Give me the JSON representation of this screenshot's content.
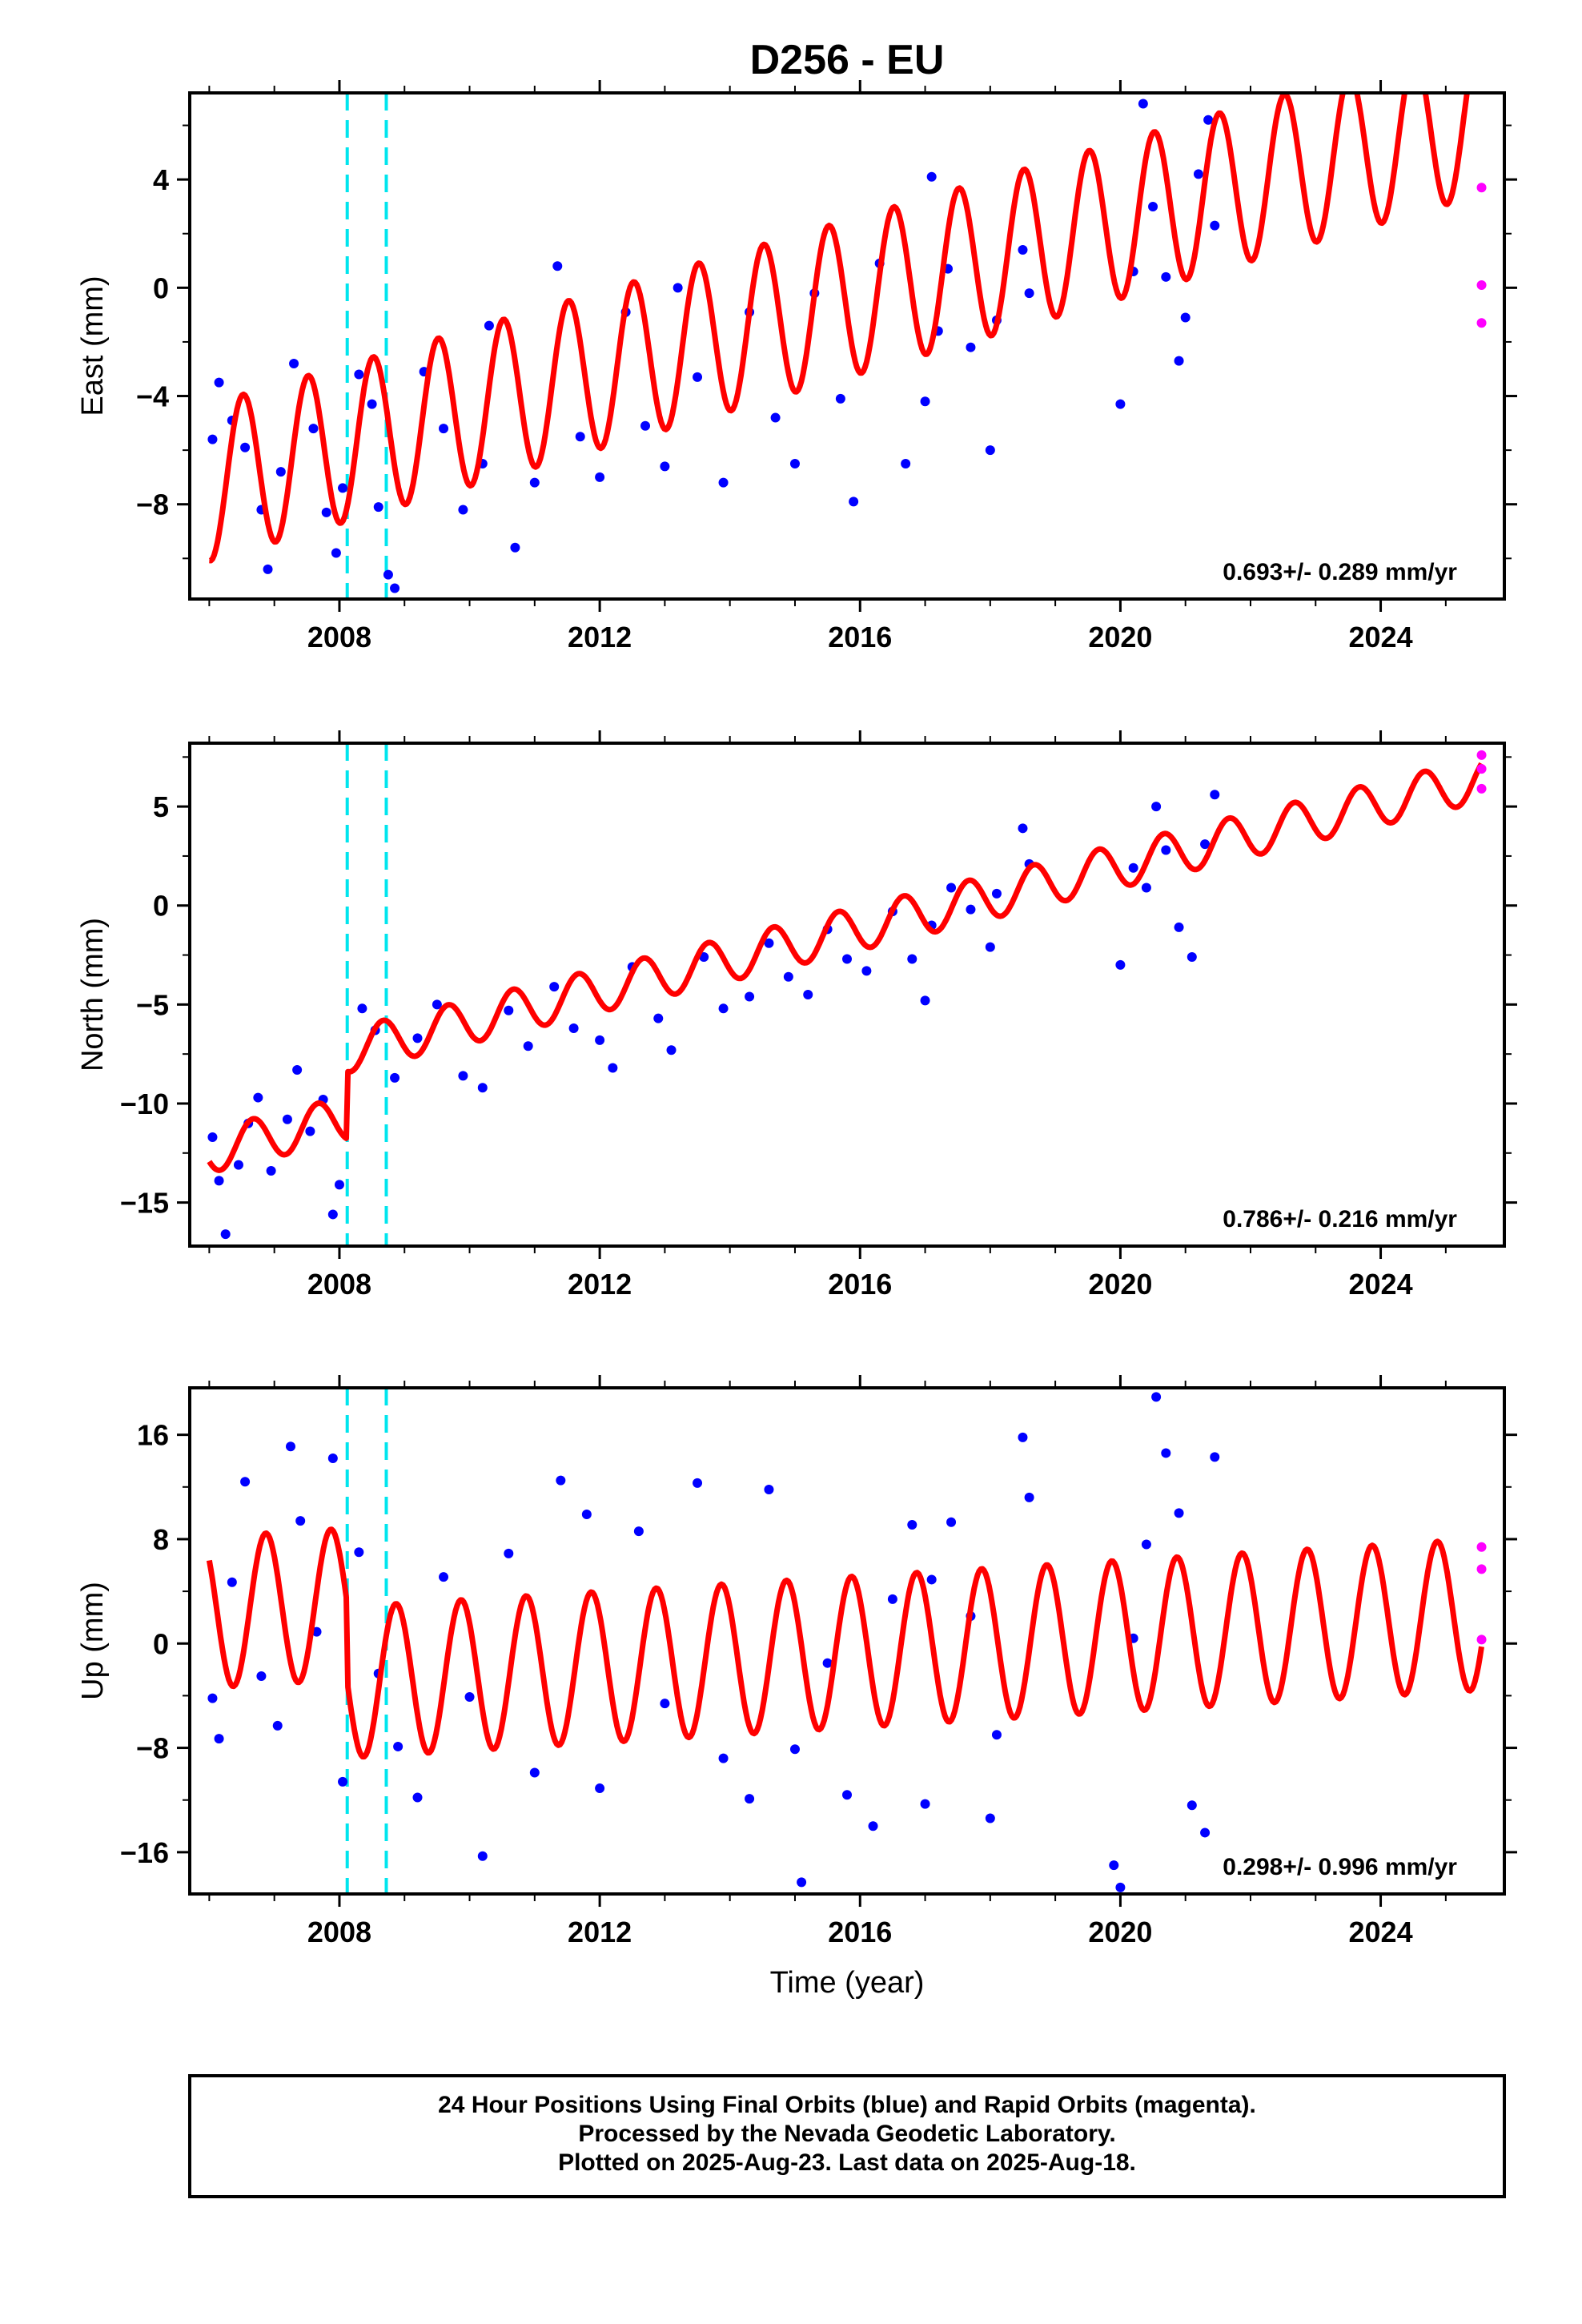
{
  "page": {
    "title": "D256 - EU",
    "xlabel": "Time (year)"
  },
  "footer": {
    "lines": [
      "24 Hour Positions Using Final Orbits (blue) and Rapid Orbits (magenta).",
      "Processed by the Nevada Geodetic Laboratory.",
      "Plotted on 2025-Aug-23. Last data on 2025-Aug-18."
    ]
  },
  "colors": {
    "final_orbits": "#0000ff",
    "rapid_orbits": "#ff00ff",
    "model": "#ff0000",
    "equipment_change": "#00e5ee",
    "axes": "#000000"
  },
  "chart_data": [
    {
      "type": "scatter",
      "name": "east",
      "ylabel": "East (mm)",
      "xlim": [
        2005.7,
        2025.9
      ],
      "ylim": [
        -11.5,
        7.2
      ],
      "x_ticks": [
        2008,
        2012,
        2016,
        2020,
        2024
      ],
      "y_ticks": [
        -8,
        -4,
        0,
        4
      ],
      "rate_text": "0.693+/- 0.289 mm/yr",
      "rate": 0.693,
      "model": {
        "offset_at_2006": -7.2,
        "amplitude": 2.9,
        "phase_year": 0.27,
        "vertical_steps": []
      },
      "breaks": [
        2008.12,
        2008.72
      ],
      "rapid_points": [
        {
          "x": 2025.55,
          "y": 3.7
        },
        {
          "x": 2025.55,
          "y": 0.1
        },
        {
          "x": 2025.55,
          "y": -1.3
        }
      ],
      "final_points": [
        {
          "x": 2006.05,
          "y": -5.6
        },
        {
          "x": 2006.15,
          "y": -3.5
        },
        {
          "x": 2006.35,
          "y": -4.9
        },
        {
          "x": 2006.55,
          "y": -5.9
        },
        {
          "x": 2006.8,
          "y": -8.2
        },
        {
          "x": 2006.9,
          "y": -10.4
        },
        {
          "x": 2007.1,
          "y": -6.8
        },
        {
          "x": 2007.3,
          "y": -2.8
        },
        {
          "x": 2007.6,
          "y": -5.2
        },
        {
          "x": 2007.8,
          "y": -8.3
        },
        {
          "x": 2007.95,
          "y": -9.8
        },
        {
          "x": 2008.05,
          "y": -7.4
        },
        {
          "x": 2008.3,
          "y": -3.2
        },
        {
          "x": 2008.5,
          "y": -4.3
        },
        {
          "x": 2008.6,
          "y": -8.1
        },
        {
          "x": 2008.75,
          "y": -10.6
        },
        {
          "x": 2008.85,
          "y": -11.1
        },
        {
          "x": 2009.3,
          "y": -3.1
        },
        {
          "x": 2009.6,
          "y": -5.2
        },
        {
          "x": 2009.9,
          "y": -8.2
        },
        {
          "x": 2010.2,
          "y": -6.5
        },
        {
          "x": 2010.3,
          "y": -1.4
        },
        {
          "x": 2010.7,
          "y": -9.6
        },
        {
          "x": 2011.0,
          "y": -7.2
        },
        {
          "x": 2011.35,
          "y": 0.8
        },
        {
          "x": 2011.7,
          "y": -5.5
        },
        {
          "x": 2012.0,
          "y": -7.0
        },
        {
          "x": 2012.4,
          "y": -0.9
        },
        {
          "x": 2012.7,
          "y": -5.1
        },
        {
          "x": 2013.0,
          "y": -6.6
        },
        {
          "x": 2013.2,
          "y": 0.0
        },
        {
          "x": 2013.5,
          "y": -3.3
        },
        {
          "x": 2013.9,
          "y": -7.2
        },
        {
          "x": 2014.3,
          "y": -0.9
        },
        {
          "x": 2014.7,
          "y": -4.8
        },
        {
          "x": 2015.0,
          "y": -6.5
        },
        {
          "x": 2015.3,
          "y": -0.2
        },
        {
          "x": 2015.7,
          "y": -4.1
        },
        {
          "x": 2015.9,
          "y": -7.9
        },
        {
          "x": 2016.3,
          "y": 0.9
        },
        {
          "x": 2016.7,
          "y": -6.5
        },
        {
          "x": 2017.0,
          "y": -4.2
        },
        {
          "x": 2017.1,
          "y": 4.1
        },
        {
          "x": 2017.2,
          "y": -1.6
        },
        {
          "x": 2017.35,
          "y": 0.7
        },
        {
          "x": 2017.7,
          "y": -2.2
        },
        {
          "x": 2018.0,
          "y": -6.0
        },
        {
          "x": 2018.1,
          "y": -1.2
        },
        {
          "x": 2018.5,
          "y": 1.4
        },
        {
          "x": 2018.6,
          "y": -0.2
        },
        {
          "x": 2020.0,
          "y": -4.3
        },
        {
          "x": 2020.2,
          "y": 0.6
        },
        {
          "x": 2020.35,
          "y": 6.8
        },
        {
          "x": 2020.5,
          "y": 3.0
        },
        {
          "x": 2020.7,
          "y": 0.4
        },
        {
          "x": 2020.9,
          "y": -2.7
        },
        {
          "x": 2021.0,
          "y": -1.1
        },
        {
          "x": 2021.2,
          "y": 4.2
        },
        {
          "x": 2021.35,
          "y": 6.2
        },
        {
          "x": 2021.45,
          "y": 2.3
        }
      ]
    },
    {
      "type": "scatter",
      "name": "north",
      "ylabel": "North (mm)",
      "xlim": [
        2005.7,
        2025.9
      ],
      "ylim": [
        -17.2,
        8.2
      ],
      "x_ticks": [
        2008,
        2012,
        2016,
        2020,
        2024
      ],
      "y_ticks": [
        -15,
        -10,
        -5,
        0,
        5
      ],
      "rate_text": "0.786+/- 0.216 mm/yr",
      "rate": 0.786,
      "model": {
        "offset_at_2006": -12.4,
        "amplitude": 1.1,
        "phase_year": 0.42,
        "vertical_steps": [
          {
            "x": 2008.12,
            "dy": 3.4
          }
        ]
      },
      "breaks": [
        2008.12,
        2008.72
      ],
      "rapid_points": [
        {
          "x": 2025.55,
          "y": 7.6
        },
        {
          "x": 2025.55,
          "y": 6.9
        },
        {
          "x": 2025.55,
          "y": 5.9
        }
      ],
      "final_points": [
        {
          "x": 2006.05,
          "y": -11.7
        },
        {
          "x": 2006.15,
          "y": -13.9
        },
        {
          "x": 2006.25,
          "y": -16.6
        },
        {
          "x": 2006.45,
          "y": -13.1
        },
        {
          "x": 2006.6,
          "y": -11.0
        },
        {
          "x": 2006.75,
          "y": -9.7
        },
        {
          "x": 2006.95,
          "y": -13.4
        },
        {
          "x": 2007.2,
          "y": -10.8
        },
        {
          "x": 2007.35,
          "y": -8.3
        },
        {
          "x": 2007.55,
          "y": -11.4
        },
        {
          "x": 2007.75,
          "y": -9.8
        },
        {
          "x": 2007.9,
          "y": -15.6
        },
        {
          "x": 2008.0,
          "y": -14.1
        },
        {
          "x": 2008.35,
          "y": -5.2
        },
        {
          "x": 2008.55,
          "y": -6.3
        },
        {
          "x": 2008.85,
          "y": -8.7
        },
        {
          "x": 2009.2,
          "y": -6.7
        },
        {
          "x": 2009.5,
          "y": -5.0
        },
        {
          "x": 2009.9,
          "y": -8.6
        },
        {
          "x": 2010.2,
          "y": -9.2
        },
        {
          "x": 2010.6,
          "y": -5.3
        },
        {
          "x": 2010.9,
          "y": -7.1
        },
        {
          "x": 2011.3,
          "y": -4.1
        },
        {
          "x": 2011.6,
          "y": -6.2
        },
        {
          "x": 2012.0,
          "y": -6.8
        },
        {
          "x": 2012.2,
          "y": -8.2
        },
        {
          "x": 2012.5,
          "y": -3.1
        },
        {
          "x": 2012.9,
          "y": -5.7
        },
        {
          "x": 2013.1,
          "y": -7.3
        },
        {
          "x": 2013.6,
          "y": -2.6
        },
        {
          "x": 2013.9,
          "y": -5.2
        },
        {
          "x": 2014.3,
          "y": -4.6
        },
        {
          "x": 2014.6,
          "y": -1.9
        },
        {
          "x": 2014.9,
          "y": -3.6
        },
        {
          "x": 2015.2,
          "y": -4.5
        },
        {
          "x": 2015.5,
          "y": -1.2
        },
        {
          "x": 2015.8,
          "y": -2.7
        },
        {
          "x": 2016.1,
          "y": -3.3
        },
        {
          "x": 2016.5,
          "y": -0.3
        },
        {
          "x": 2016.8,
          "y": -2.7
        },
        {
          "x": 2017.0,
          "y": -4.8
        },
        {
          "x": 2017.1,
          "y": -1.0
        },
        {
          "x": 2017.4,
          "y": 0.9
        },
        {
          "x": 2017.7,
          "y": -0.2
        },
        {
          "x": 2018.0,
          "y": -2.1
        },
        {
          "x": 2018.1,
          "y": 0.6
        },
        {
          "x": 2018.5,
          "y": 3.9
        },
        {
          "x": 2018.6,
          "y": 2.1
        },
        {
          "x": 2020.0,
          "y": -3.0
        },
        {
          "x": 2020.2,
          "y": 1.9
        },
        {
          "x": 2020.4,
          "y": 0.9
        },
        {
          "x": 2020.55,
          "y": 5.0
        },
        {
          "x": 2020.7,
          "y": 2.8
        },
        {
          "x": 2020.9,
          "y": -1.1
        },
        {
          "x": 2021.1,
          "y": -2.6
        },
        {
          "x": 2021.3,
          "y": 3.1
        },
        {
          "x": 2021.45,
          "y": 5.6
        }
      ]
    },
    {
      "type": "scatter",
      "name": "up",
      "ylabel": "Up (mm)",
      "xlim": [
        2005.7,
        2025.9
      ],
      "ylim": [
        -19.2,
        19.6
      ],
      "x_ticks": [
        2008,
        2012,
        2016,
        2020,
        2024
      ],
      "y_ticks": [
        -16,
        -8,
        0,
        8,
        16
      ],
      "rate_text": "0.298+/- 0.996 mm/yr",
      "rate": 0.298,
      "model": {
        "offset_at_2006": 2.4,
        "amplitude": 5.8,
        "phase_year": 0.62,
        "vertical_steps": [
          {
            "x": 2008.12,
            "dy": -6.0
          }
        ]
      },
      "breaks": [
        2008.12,
        2008.72
      ],
      "rapid_points": [
        {
          "x": 2025.55,
          "y": 7.4
        },
        {
          "x": 2025.55,
          "y": 5.7
        },
        {
          "x": 2025.55,
          "y": 0.3
        }
      ],
      "final_points": [
        {
          "x": 2006.05,
          "y": -4.2
        },
        {
          "x": 2006.15,
          "y": -7.3
        },
        {
          "x": 2006.35,
          "y": 4.7
        },
        {
          "x": 2006.55,
          "y": 12.4
        },
        {
          "x": 2006.8,
          "y": -2.5
        },
        {
          "x": 2007.05,
          "y": -6.3
        },
        {
          "x": 2007.25,
          "y": 15.1
        },
        {
          "x": 2007.4,
          "y": 9.4
        },
        {
          "x": 2007.65,
          "y": 0.9
        },
        {
          "x": 2007.9,
          "y": 14.2
        },
        {
          "x": 2008.05,
          "y": -10.6
        },
        {
          "x": 2008.3,
          "y": 7.0
        },
        {
          "x": 2008.6,
          "y": -2.3
        },
        {
          "x": 2008.9,
          "y": -7.9
        },
        {
          "x": 2009.2,
          "y": -11.8
        },
        {
          "x": 2009.6,
          "y": 5.1
        },
        {
          "x": 2010.0,
          "y": -4.1
        },
        {
          "x": 2010.2,
          "y": -16.3
        },
        {
          "x": 2010.6,
          "y": 6.9
        },
        {
          "x": 2011.0,
          "y": -9.9
        },
        {
          "x": 2011.4,
          "y": 12.5
        },
        {
          "x": 2011.8,
          "y": 9.9
        },
        {
          "x": 2012.0,
          "y": -11.1
        },
        {
          "x": 2012.6,
          "y": 8.6
        },
        {
          "x": 2013.0,
          "y": -4.6
        },
        {
          "x": 2013.5,
          "y": 12.3
        },
        {
          "x": 2013.9,
          "y": -8.8
        },
        {
          "x": 2014.3,
          "y": -11.9
        },
        {
          "x": 2014.6,
          "y": 11.8
        },
        {
          "x": 2015.0,
          "y": -8.1
        },
        {
          "x": 2015.1,
          "y": -18.3
        },
        {
          "x": 2015.5,
          "y": -1.5
        },
        {
          "x": 2015.8,
          "y": -11.6
        },
        {
          "x": 2016.2,
          "y": -14.0
        },
        {
          "x": 2016.5,
          "y": 3.4
        },
        {
          "x": 2016.8,
          "y": 9.1
        },
        {
          "x": 2017.0,
          "y": -12.3
        },
        {
          "x": 2017.1,
          "y": 4.9
        },
        {
          "x": 2017.4,
          "y": 9.3
        },
        {
          "x": 2017.7,
          "y": 2.1
        },
        {
          "x": 2018.0,
          "y": -13.4
        },
        {
          "x": 2018.1,
          "y": -7.0
        },
        {
          "x": 2018.5,
          "y": 15.8
        },
        {
          "x": 2018.6,
          "y": 11.2
        },
        {
          "x": 2019.9,
          "y": -17.0
        },
        {
          "x": 2020.0,
          "y": -18.7
        },
        {
          "x": 2020.2,
          "y": 0.4
        },
        {
          "x": 2020.4,
          "y": 7.6
        },
        {
          "x": 2020.55,
          "y": 18.9
        },
        {
          "x": 2020.7,
          "y": 14.6
        },
        {
          "x": 2020.9,
          "y": 10.0
        },
        {
          "x": 2021.1,
          "y": -12.4
        },
        {
          "x": 2021.3,
          "y": -14.5
        },
        {
          "x": 2021.45,
          "y": 14.3
        }
      ]
    }
  ]
}
